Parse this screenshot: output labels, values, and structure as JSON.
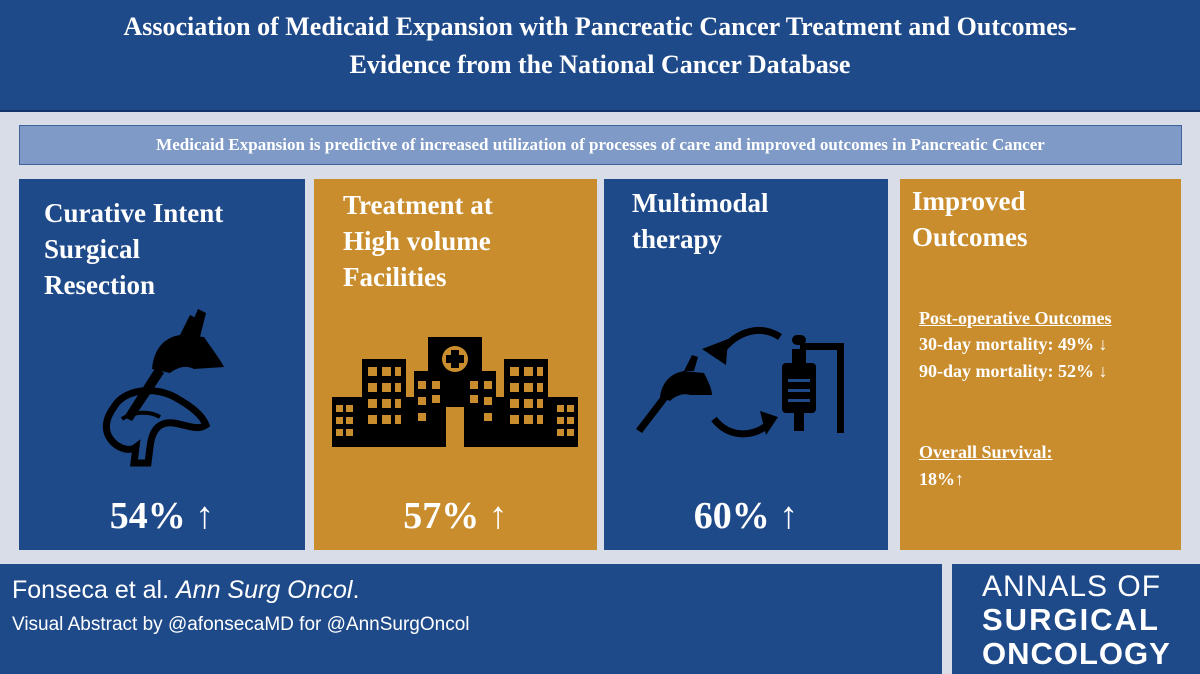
{
  "title": {
    "line1": "Association of Medicaid Expansion with Pancreatic Cancer Treatment and Outcomes-",
    "line2": "Evidence from the National Cancer Database"
  },
  "subtitle": "Medicaid Expansion is predictive of increased utilization of processes of care and improved outcomes in Pancreatic Cancer",
  "panels": [
    {
      "heading": [
        "Curative Intent",
        "Surgical",
        "Resection"
      ],
      "percent": "54% ↑",
      "icon": "surgeon-hand-pancreas-icon",
      "color": "#1f4a8a"
    },
    {
      "heading": [
        "Treatment at",
        "High volume",
        "Facilities"
      ],
      "percent": "57% ↑",
      "icon": "hospital-icon",
      "color": "#c98d2e"
    },
    {
      "heading": [
        "Multimodal",
        "therapy"
      ],
      "percent": "60% ↑",
      "icon": "scalpel-cycle-iv-bag-icon",
      "color": "#1f4a8a"
    },
    {
      "heading": [
        "Improved",
        "Outcomes"
      ],
      "color": "#c98d2e",
      "postop_title": "Post-operative Outcomes",
      "mortality_30": "30-day mortality: 49% ↓",
      "mortality_90": "90-day mortality: 52% ↓",
      "survival_title": "Overall Survival:",
      "survival_value": "18%↑"
    }
  ],
  "footer": {
    "author": "Fonseca et al.",
    "journal": "Ann Surg Oncol",
    "period": ".",
    "credit": "Visual Abstract by @afonsecaMD for @AnnSurgOncol"
  },
  "logo": {
    "line1": "ANNALS OF",
    "line2": "SURGICAL",
    "line3": "ONCOLOGY"
  }
}
